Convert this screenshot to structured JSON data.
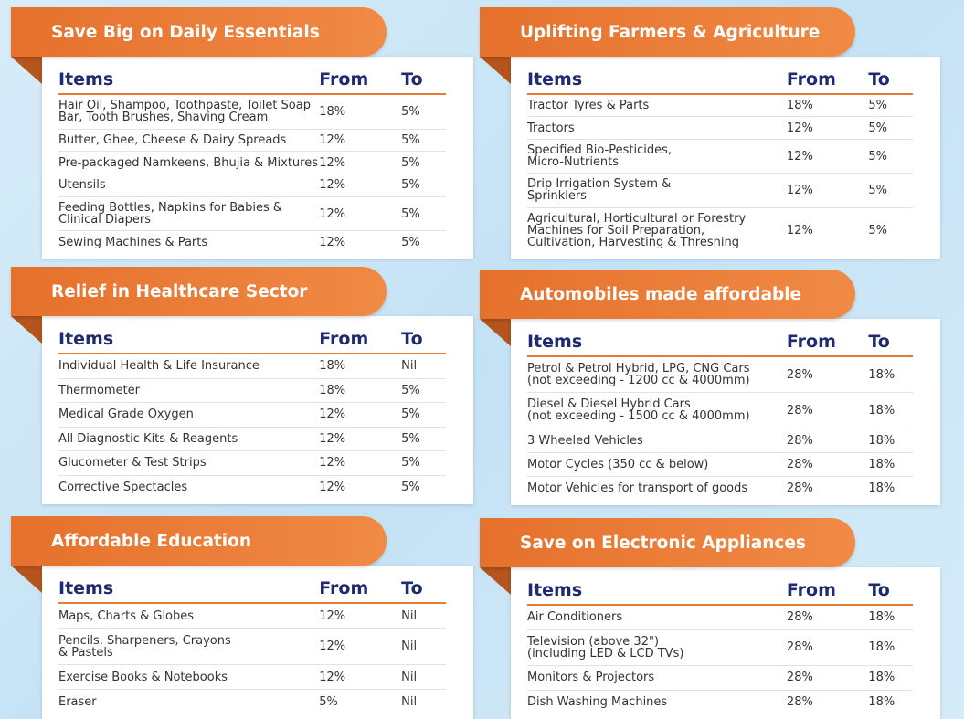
{
  "columns": [
    "Items",
    "From",
    "To"
  ],
  "panels": [
    {
      "title": "Save Big on Daily Essentials",
      "rows": [
        [
          "Hair Oil, Shampoo, Toothpaste, Toilet Soap\nBar, Tooth Brushes, Shaving Cream",
          "18%",
          "5%"
        ],
        [
          "Butter, Ghee, Cheese & Dairy Spreads",
          "12%",
          "5%"
        ],
        [
          "Pre-packaged Namkeens, Bhujia & Mixtures",
          "12%",
          "5%"
        ],
        [
          "Utensils",
          "12%",
          "5%"
        ],
        [
          "Feeding Bottles, Napkins for Babies &\nClinical Diapers",
          "12%",
          "5%"
        ],
        [
          "Sewing Machines & Parts",
          "12%",
          "5%"
        ]
      ]
    },
    {
      "title": "Uplifting Farmers & Agriculture",
      "rows": [
        [
          "Tractor Tyres & Parts",
          "18%",
          "5%"
        ],
        [
          "Tractors",
          "12%",
          "5%"
        ],
        [
          "Specified Bio-Pesticides,\nMicro-Nutrients",
          "12%",
          "5%"
        ],
        [
          "Drip Irrigation System &\nSprinklers",
          "12%",
          "5%"
        ],
        [
          "Agricultural, Horticultural or Forestry\nMachines for Soil Preparation,\nCultivation, Harvesting & Threshing",
          "12%",
          "5%"
        ]
      ]
    },
    {
      "title": "Relief in Healthcare Sector",
      "rows": [
        [
          "Individual Health & Life Insurance",
          "18%",
          "Nil"
        ],
        [
          "Thermometer",
          "18%",
          "5%"
        ],
        [
          "Medical Grade Oxygen",
          "12%",
          "5%"
        ],
        [
          "All Diagnostic Kits & Reagents",
          "12%",
          "5%"
        ],
        [
          "Glucometer & Test Strips",
          "12%",
          "5%"
        ],
        [
          "Corrective Spectacles",
          "12%",
          "5%"
        ]
      ]
    },
    {
      "title": "Automobiles made affordable",
      "rows": [
        [
          "Petrol & Petrol Hybrid, LPG, CNG Cars\n(not exceeding - 1200 cc & 4000mm)",
          "28%",
          "18%"
        ],
        [
          "Diesel & Diesel Hybrid Cars\n(not exceeding - 1500 cc & 4000mm)",
          "28%",
          "18%"
        ],
        [
          "3 Wheeled Vehicles",
          "28%",
          "18%"
        ],
        [
          "Motor Cycles (350 cc & below)",
          "28%",
          "18%"
        ],
        [
          "Motor Vehicles for transport of goods",
          "28%",
          "18%"
        ]
      ]
    },
    {
      "title": "Affordable Education",
      "rows": [
        [
          "Maps, Charts & Globes",
          "12%",
          "Nil"
        ],
        [
          "Pencils, Sharpeners, Crayons\n& Pastels",
          "12%",
          "Nil"
        ],
        [
          "Exercise Books & Notebooks",
          "12%",
          "Nil"
        ],
        [
          "Eraser",
          "5%",
          "Nil"
        ]
      ]
    },
    {
      "title": "Save on Electronic Appliances",
      "rows": [
        [
          "Air Conditioners",
          "28%",
          "18%"
        ],
        [
          "Television (above 32\")\n(including LED & LCD TVs)",
          "28%",
          "18%"
        ],
        [
          "Monitors & Projectors",
          "28%",
          "18%"
        ],
        [
          "Dish Washing Machines",
          "28%",
          "18%"
        ]
      ]
    }
  ]
}
